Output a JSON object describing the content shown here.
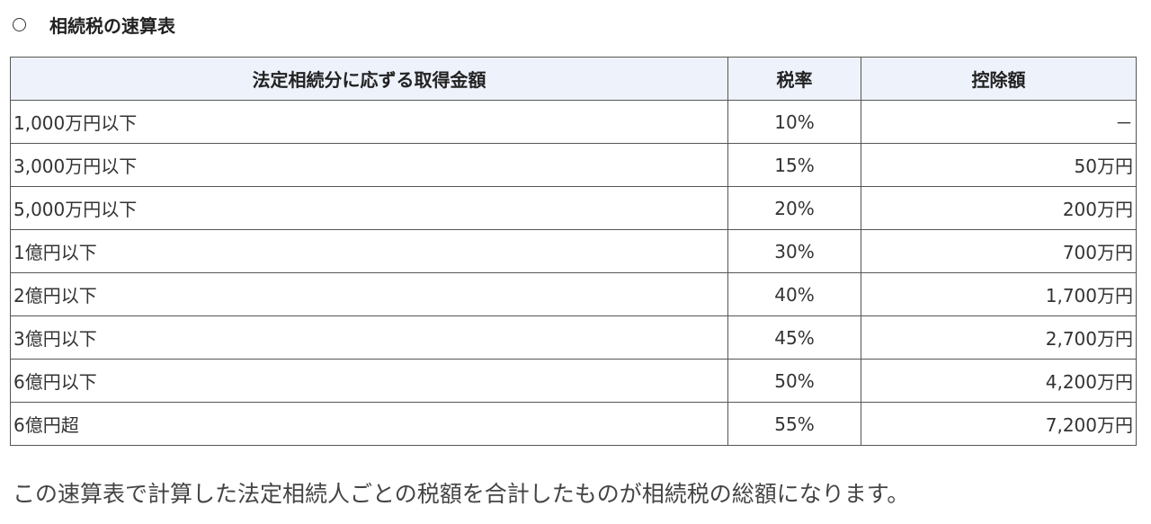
{
  "heading": {
    "marker_icon": "circle-marker-icon",
    "title": "相続税の速算表"
  },
  "table": {
    "headers": [
      "法定相続分に応ずる取得金額",
      "税率",
      "控除額"
    ],
    "rows": [
      {
        "amount": "1,000万円以下",
        "rate": "10%",
        "deduction": "－"
      },
      {
        "amount": "3,000万円以下",
        "rate": "15%",
        "deduction": "50万円"
      },
      {
        "amount": "5,000万円以下",
        "rate": "20%",
        "deduction": "200万円"
      },
      {
        "amount": "1億円以下",
        "rate": "30%",
        "deduction": "700万円"
      },
      {
        "amount": "2億円以下",
        "rate": "40%",
        "deduction": "1,700万円"
      },
      {
        "amount": "3億円以下",
        "rate": "45%",
        "deduction": "2,700万円"
      },
      {
        "amount": "6億円以下",
        "rate": "50%",
        "deduction": "4,200万円"
      },
      {
        "amount": "6億円超",
        "rate": "55%",
        "deduction": "7,200万円"
      }
    ]
  },
  "note": "この速算表で計算した法定相続人ごとの税額を合計したものが相続税の総額になります。",
  "colors": {
    "header_background": "#eef2fb",
    "border": "#555555",
    "text": "#333333"
  }
}
